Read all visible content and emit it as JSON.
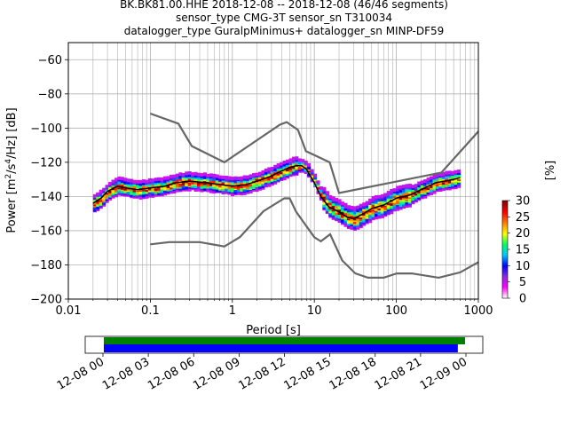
{
  "title": {
    "line1": "BK.BK81.00.HHE   2018-12-08 -- 2018-12-08  (46/46 segments)",
    "line2": "sensor_type CMG-3T sensor_sn T310034",
    "line3": "datalogger_type GuralpMinimus+ datalogger_sn MINP-DF59"
  },
  "chart_data": {
    "type": "scatter",
    "subtype": "probabilistic power spectral density (PPSD) with noise models",
    "xlabel": "Period [s]",
    "ylabel": "Power [m²/s⁴/Hz] [dB]",
    "ylabel_parts": [
      "Power [m",
      "2",
      "/s",
      "4",
      "/Hz] [dB]"
    ],
    "xscale": "log",
    "xlim": [
      0.01,
      1000
    ],
    "ylim": [
      -200,
      -50
    ],
    "x_ticks": [
      0.01,
      0.1,
      1,
      10,
      100,
      1000
    ],
    "x_tick_labels": [
      "0.01",
      "0.1",
      "1",
      "10",
      "100",
      "1000"
    ],
    "y_ticks": [
      -200,
      -180,
      -160,
      -140,
      -120,
      -100,
      -80,
      -60
    ],
    "y_tick_labels": [
      "−200",
      "−180",
      "−160",
      "−140",
      "−120",
      "−100",
      "−80",
      "−60"
    ],
    "grid": true,
    "colorbar": {
      "label": "[%]",
      "min": 0,
      "max": 30,
      "ticks": [
        0,
        5,
        10,
        15,
        20,
        25,
        30
      ],
      "colormap": [
        "#ffffff",
        "#ff00ff",
        "#8a2be2",
        "#0000ff",
        "#00c8ff",
        "#00ff64",
        "#ffff00",
        "#ff7f00",
        "#ff0000",
        "#8b0000"
      ]
    },
    "noise_models": {
      "high": {
        "x": [
          0.1,
          0.22,
          0.32,
          0.8,
          3.8,
          4.6,
          6.3,
          7.9,
          15.4,
          20,
          354.8,
          10000
        ],
        "y": [
          -91.5,
          -97.4,
          -110.5,
          -120,
          -98,
          -96.5,
          -101,
          -113.5,
          -120,
          -138,
          -126,
          -48.5
        ]
      },
      "low": {
        "x": [
          0.1,
          0.17,
          0.4,
          0.8,
          1.24,
          2.4,
          4.3,
          5,
          6,
          10,
          12,
          15.6,
          21.9,
          31.6,
          45,
          70,
          101,
          154,
          328,
          600,
          10000
        ],
        "y": [
          -168,
          -166.7,
          -166.7,
          -169.2,
          -163.7,
          -148.6,
          -141.1,
          -141.1,
          -149,
          -163.8,
          -166.2,
          -162.1,
          -177.5,
          -185,
          -187.5,
          -187.5,
          -185,
          -185,
          -187.5,
          -184.4,
          -151.5
        ]
      },
      "color": "#666666"
    },
    "mode_curve": {
      "x": [
        0.02,
        0.025,
        0.03,
        0.04,
        0.05,
        0.07,
        0.1,
        0.15,
        0.2,
        0.3,
        0.5,
        0.7,
        1,
        1.5,
        2,
        3,
        4,
        5,
        6,
        7,
        8,
        10,
        12,
        15,
        20,
        25,
        30,
        40,
        50,
        70,
        100,
        150,
        200,
        300,
        500,
        600
      ],
      "y": [
        -144,
        -141,
        -137,
        -134,
        -135,
        -136,
        -135,
        -134,
        -132,
        -131,
        -132,
        -133,
        -134,
        -133,
        -131,
        -128,
        -125,
        -123,
        -122,
        -122,
        -124,
        -132,
        -140,
        -146,
        -149,
        -152,
        -153,
        -150,
        -147,
        -145,
        -141,
        -139,
        -136,
        -132,
        -130,
        -129
      ],
      "color": "#000000"
    },
    "data_coverage": {
      "time_ticks": [
        "12-08 00",
        "12-08 03",
        "12-08 06",
        "12-08 09",
        "12-08 12",
        "12-08 15",
        "12-08 18",
        "12-08 21",
        "12-09 00"
      ],
      "used_data_fraction": [
        0,
        0.98
      ],
      "available_data_fraction": [
        0,
        1.0
      ],
      "used_color": "#0000ff",
      "available_color": "#008000"
    }
  }
}
